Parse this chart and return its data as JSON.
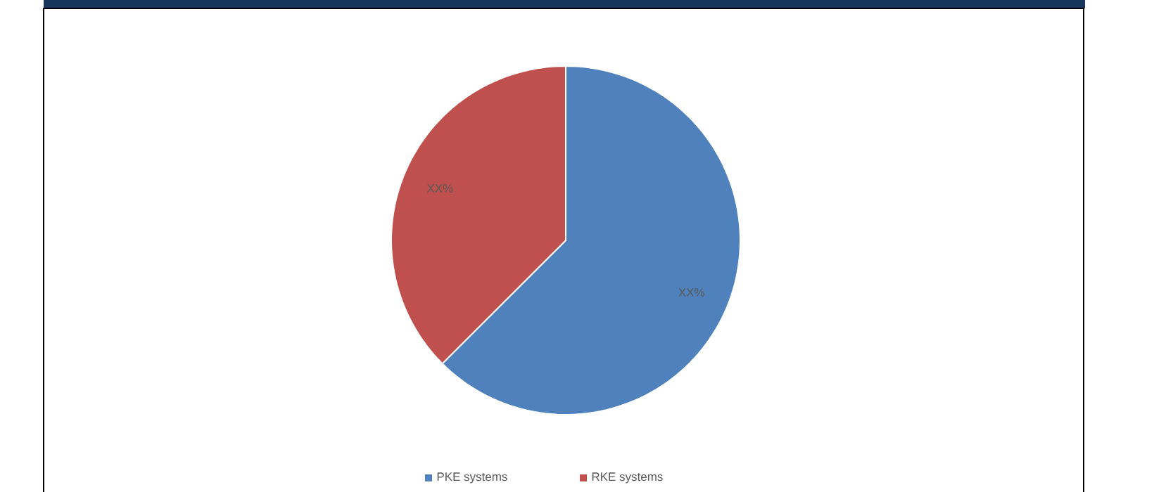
{
  "chart_data": {
    "type": "pie",
    "categories": [
      "PKE systems",
      "RKE systems"
    ],
    "values": [
      62.5,
      37.5
    ],
    "colors": [
      "#4f81bd",
      "#c0504d"
    ],
    "value_labels": [
      "XX%",
      "XX%"
    ],
    "legend": "bottom"
  }
}
